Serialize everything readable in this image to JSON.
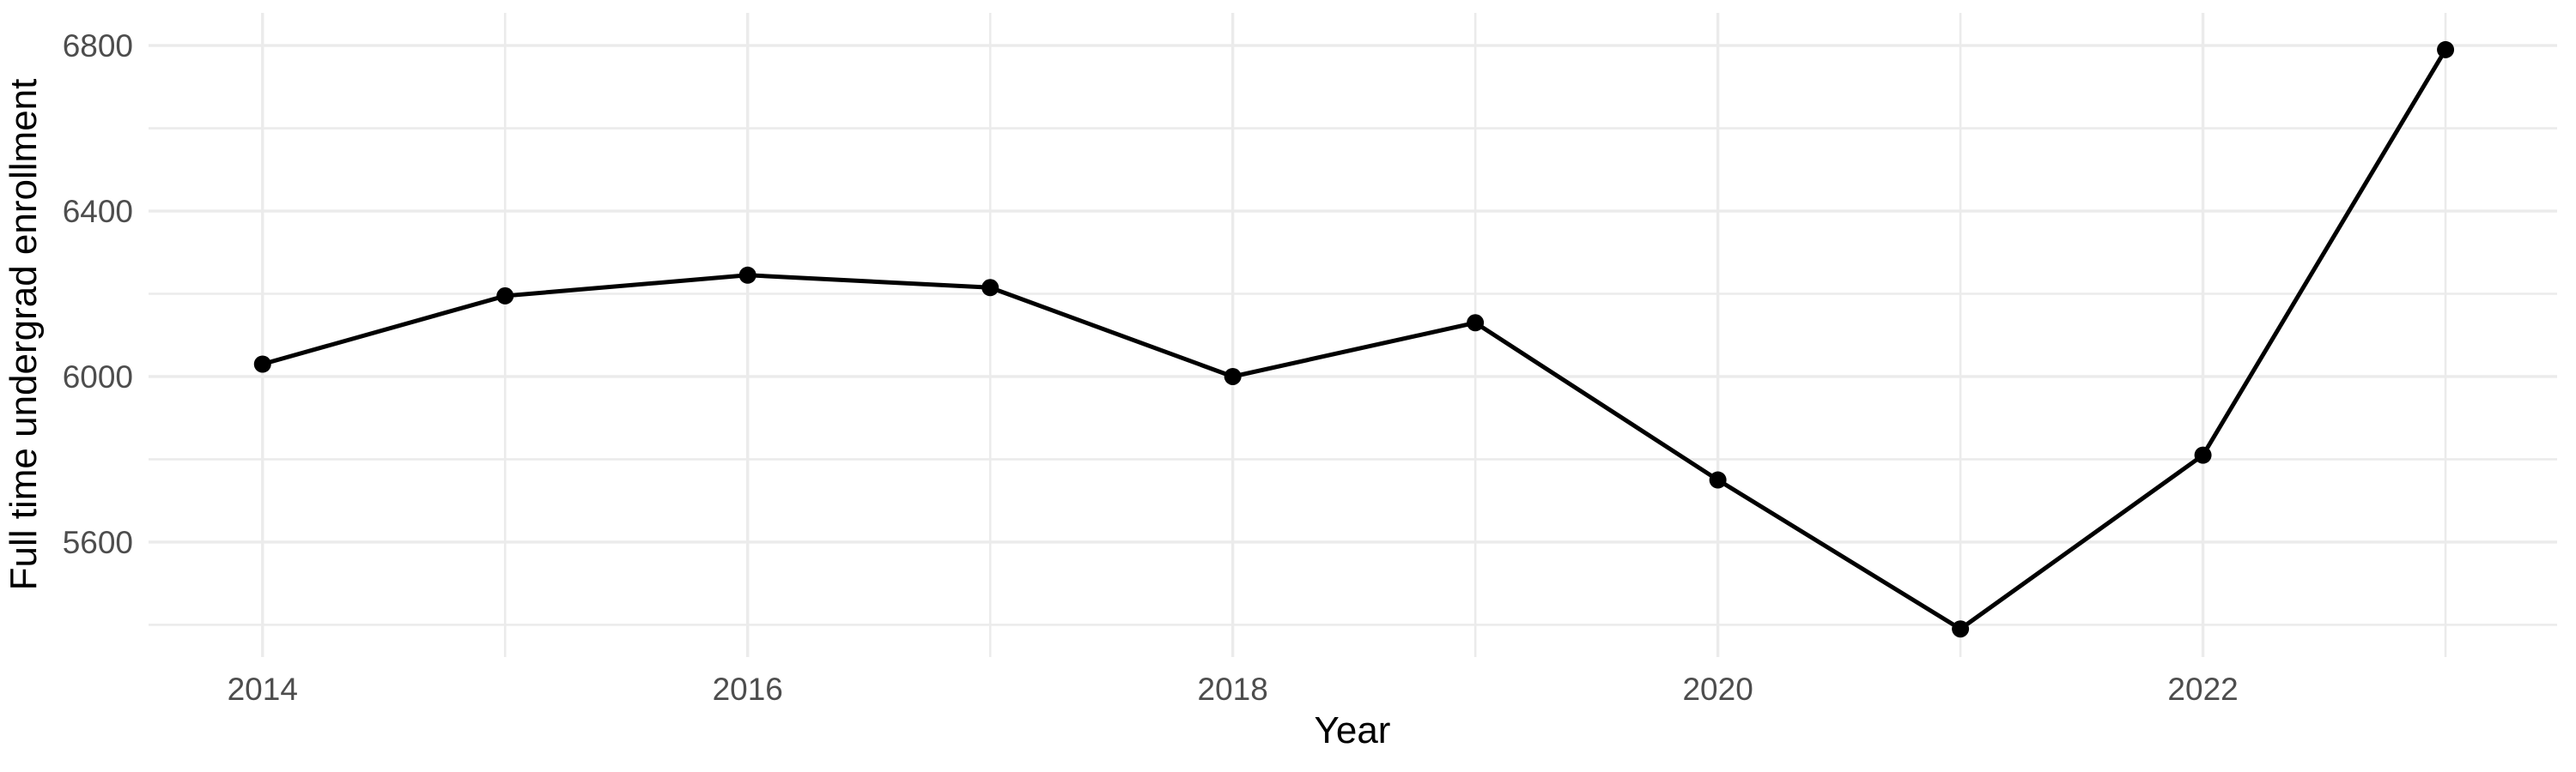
{
  "figure": {
    "background": "#FFFFFF"
  },
  "chart_data": {
    "type": "line",
    "title": "",
    "xlabel": "Year",
    "ylabel": "Full time undergrad enrollment",
    "x": [
      2014,
      2015,
      2016,
      2017,
      2018,
      2019,
      2020,
      2021,
      2022,
      2023
    ],
    "values": [
      6030,
      6195,
      6245,
      6215,
      6000,
      6130,
      5750,
      5390,
      5810,
      6790
    ],
    "series": [
      {
        "name": "Full time undergrad enrollment",
        "values": [
          6030,
          6195,
          6245,
          6215,
          6000,
          6130,
          5750,
          5390,
          5810,
          6790
        ]
      }
    ],
    "x_major_ticks": {
      "values": [
        2014,
        2016,
        2018,
        2020,
        2022
      ],
      "labels": [
        "2014",
        "2016",
        "2018",
        "2020",
        "2022"
      ]
    },
    "x_minor_grid": [
      2015,
      2017,
      2019,
      2021,
      2023
    ],
    "y_major_ticks": {
      "values": [
        5600,
        6000,
        6400,
        6800
      ],
      "labels": [
        "5600",
        "6000",
        "6400",
        "6800"
      ]
    },
    "y_minor_grid": [
      5400,
      5800,
      6200,
      6600
    ],
    "xlim": [
      2013.53,
      2023.46
    ],
    "ylim": [
      5322,
      6879
    ],
    "grid": "on",
    "legend": "none",
    "style": {
      "line_color": "#000000",
      "point_color": "#000000",
      "grid_color": "#EBEBEB",
      "tick_label_color": "#4D4D4D",
      "axis_title_color": "#000000",
      "line_width": 5,
      "point_radius": 10,
      "major_grid_width": 3.4,
      "minor_grid_width": 2.6
    }
  }
}
